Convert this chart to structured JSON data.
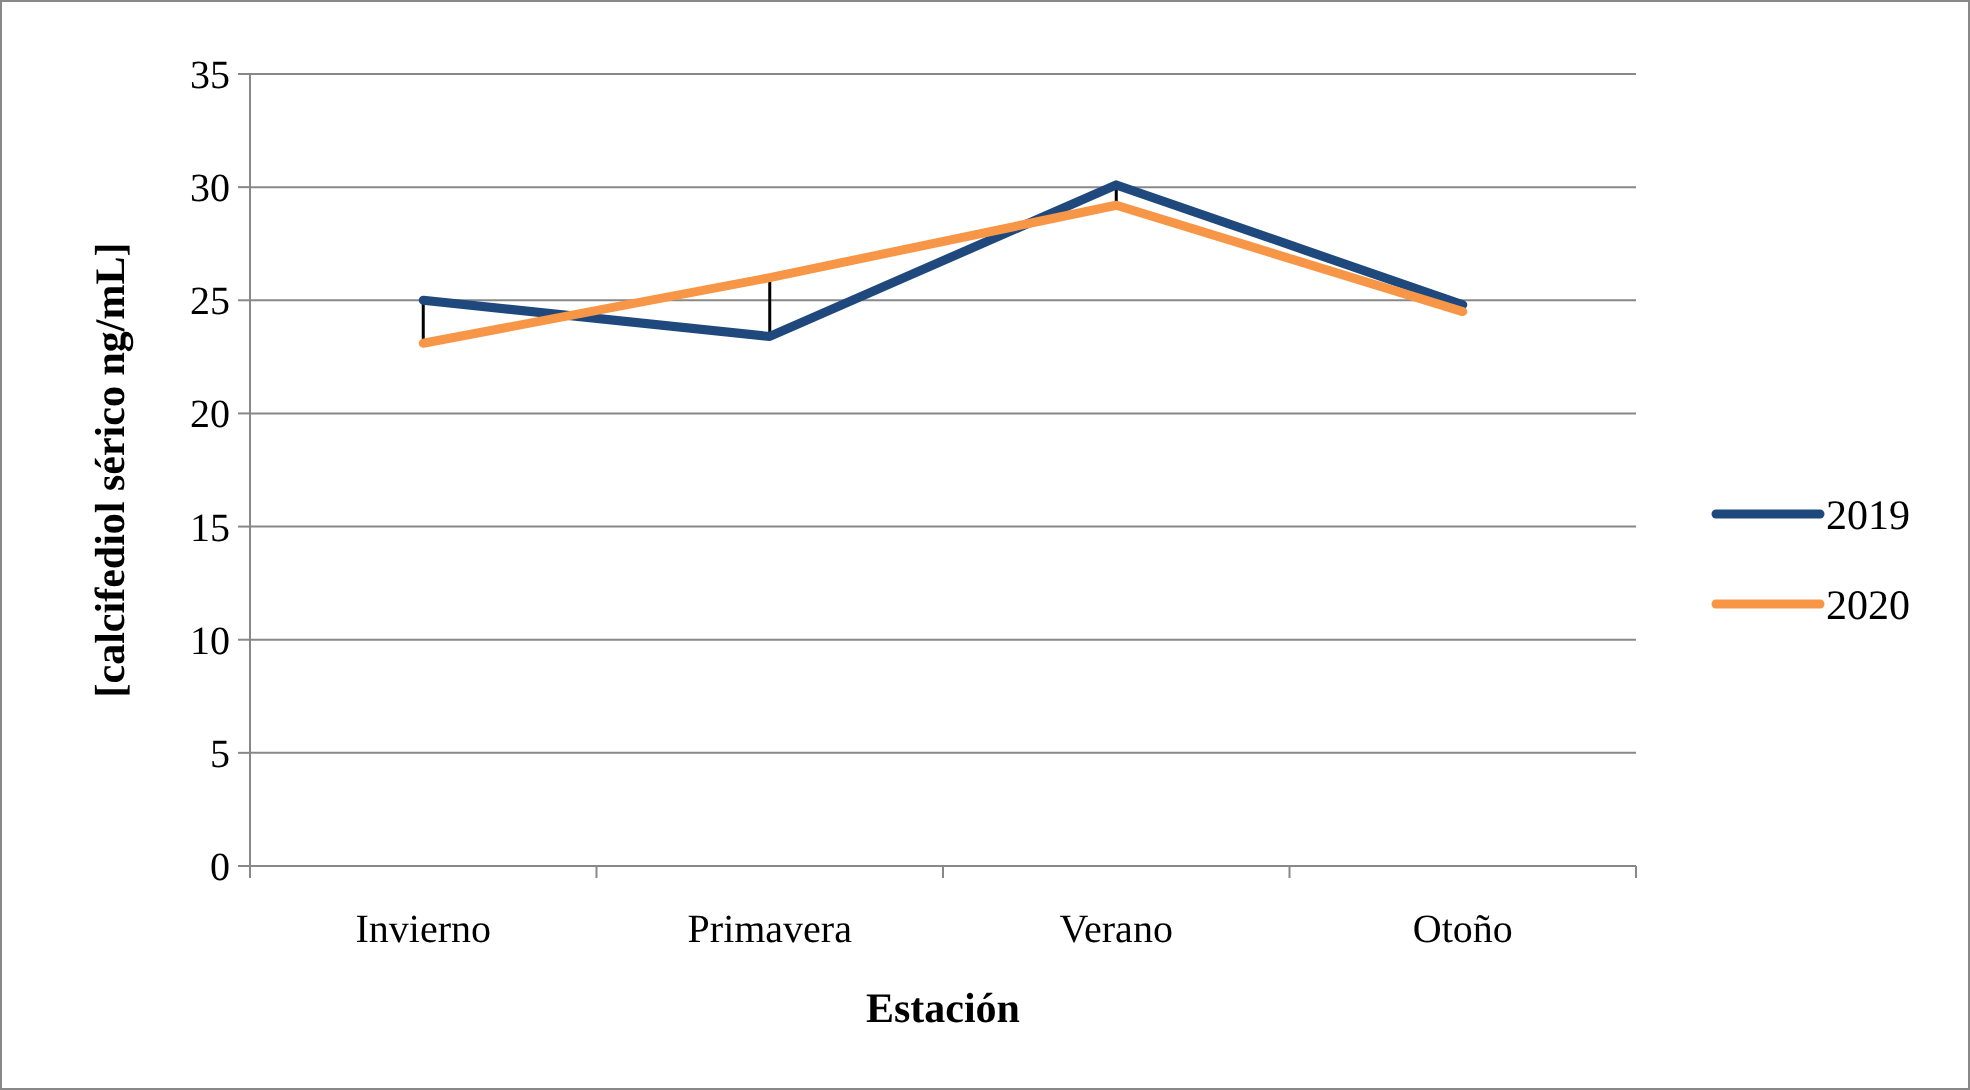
{
  "chart_data": {
    "type": "line",
    "xlabel": "Estación",
    "ylabel": "[calcifediol sérico ng/mL]",
    "categories": [
      "Invierno",
      "Primavera",
      "Verano",
      "Otoño"
    ],
    "series": [
      {
        "name": "2019",
        "color": "#1f497d",
        "values": [
          25.0,
          23.4,
          30.1,
          24.8
        ]
      },
      {
        "name": "2020",
        "color": "#f79646",
        "values": [
          23.1,
          26.0,
          29.2,
          24.5
        ]
      }
    ],
    "ylim": [
      0,
      35
    ],
    "yticks": [
      0,
      5,
      10,
      15,
      20,
      25,
      30,
      35
    ],
    "grid": "y",
    "legend": "right",
    "marker": "none",
    "line_style": "solid"
  }
}
